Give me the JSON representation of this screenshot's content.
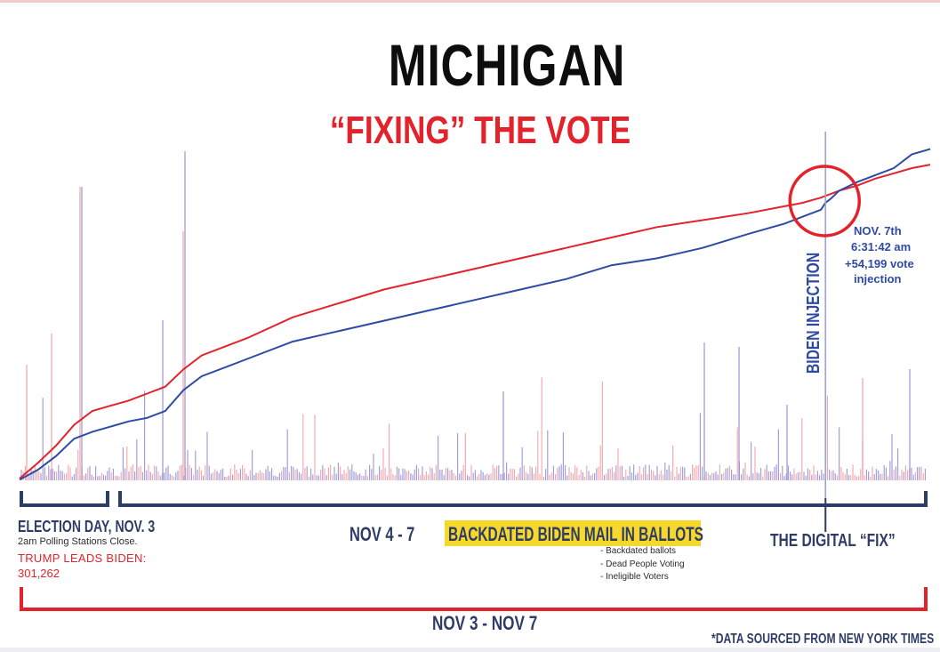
{
  "title": "MICHIGAN",
  "subtitle": "“FIXING” THE VOTE",
  "labels": {
    "election_day": "ELECTION DAY, NOV. 3",
    "polling": "2am Polling Stations Close.",
    "trump_leads": "TRUMP LEADS BIDEN:",
    "trump_margin": "301,262",
    "nov4_7": "NOV 4 - 7",
    "banner": "BACKDATED BIDEN MAIL IN BALLOTS",
    "bullets": [
      "- Backdated ballots",
      "- Dead People Voting",
      "- Ineligible Voters"
    ],
    "digital_fix": "THE DIGITAL “FIX”",
    "nov3_7": "NOV 3 - NOV 7",
    "source": "*DATA SOURCED FROM NEW YORK TIMES"
  },
  "annotation": {
    "time_line1": "NOV. 7th",
    "time_line2": "6:31:42 am",
    "vote_line": "+54,199 vote",
    "vote_line2": "injection",
    "vertical_label": "BIDEN INJECTION"
  },
  "colors": {
    "trump_red": "#e2232c",
    "biden_blue": "#2f4aa5",
    "navy": "#2f3d66",
    "banner_yellow": "#f6d82c",
    "spike_red": "#f2a3a8",
    "spike_blue": "#9b94d6"
  },
  "chart_data": {
    "type": "line",
    "title": "MICHIGAN — “FIXING” THE VOTE",
    "xlabel": "NOV 3 - NOV 7",
    "ylabel": "",
    "x_range": [
      0,
      100
    ],
    "y_range": [
      0,
      100
    ],
    "x": [
      0,
      2,
      4,
      6,
      8,
      10,
      12,
      14,
      16,
      18,
      20,
      25,
      30,
      35,
      40,
      45,
      50,
      55,
      60,
      65,
      70,
      75,
      80,
      84,
      86,
      88,
      88.5,
      89,
      90,
      92,
      94,
      96,
      98,
      100
    ],
    "series": [
      {
        "name": "Trump",
        "color": "#e2232c",
        "values": [
          0.5,
          5,
          10,
          16,
          20,
          21.5,
          23,
          25,
          27,
          32,
          36,
          41,
          47,
          51,
          55,
          58,
          61,
          64,
          67,
          70,
          73,
          75,
          77,
          79,
          80,
          81.5,
          82,
          82.5,
          83.5,
          85,
          87,
          88.5,
          90,
          91
        ]
      },
      {
        "name": "Biden",
        "color": "#2f4aa5",
        "values": [
          0.2,
          3,
          7,
          12,
          14,
          15.5,
          17,
          18,
          20,
          26,
          30,
          35,
          40,
          43,
          46,
          49,
          52,
          55,
          58,
          62,
          64,
          67,
          71,
          74,
          76,
          78,
          80,
          81,
          83.5,
          86,
          88,
          90,
          94,
          95.5
        ]
      }
    ],
    "annotations": [
      {
        "x": 88.5,
        "text": "NOV. 7th 6:31:42 am +54,199 vote injection"
      }
    ]
  }
}
